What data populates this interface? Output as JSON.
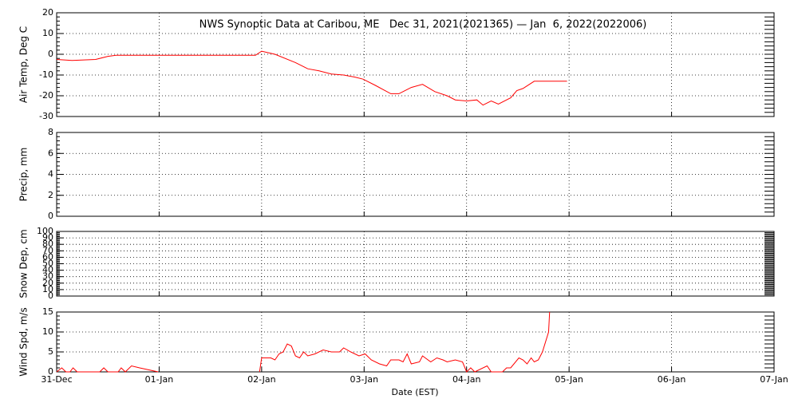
{
  "chart_data": [
    {
      "type": "line",
      "title": "NWS Synoptic Data at Caribou, ME   Dec 31, 2021(2021365) — Jan  6, 2022(2022006)",
      "ylabel": "Air Temp, Deg C",
      "xlim": [
        0,
        7
      ],
      "ylim": [
        -30,
        20
      ],
      "yticks": [
        -30,
        -20,
        -10,
        0,
        10,
        20
      ],
      "grid": true,
      "series": [
        {
          "color": "#ff0000",
          "x": [
            0,
            0.15,
            0.38,
            0.5,
            0.58,
            1.94,
            2.0,
            2.13,
            2.33,
            2.45,
            2.56,
            2.68,
            2.8,
            2.91,
            2.99,
            3.11,
            3.26,
            3.34,
            3.46,
            3.57,
            3.69,
            3.81,
            3.89,
            4.0,
            4.1,
            4.16,
            4.24,
            4.31,
            4.43,
            4.49,
            4.55,
            4.66,
            4.98
          ],
          "values": [
            -2.5,
            -3,
            -2.5,
            -1,
            -0.5,
            -0.5,
            1.5,
            0,
            -4,
            -7,
            -8,
            -9.5,
            -10,
            -11,
            -12,
            -15,
            -19,
            -19,
            -16,
            -14.5,
            -18,
            -20,
            -22,
            -22.5,
            -22,
            -24.5,
            -22.5,
            -24,
            -21,
            -17.5,
            -16.5,
            -13,
            -13
          ]
        }
      ]
    },
    {
      "type": "line",
      "ylabel": "Precip, mm",
      "xlim": [
        0,
        7
      ],
      "ylim": [
        0,
        8
      ],
      "yticks": [
        0,
        2,
        4,
        6,
        8
      ],
      "grid": true
    },
    {
      "type": "line",
      "ylabel": "Snow Dep, cm",
      "xlim": [
        0,
        7
      ],
      "ylim": [
        0,
        100
      ],
      "yticks": [
        0,
        10,
        20,
        30,
        40,
        50,
        60,
        70,
        80,
        90,
        100
      ],
      "grid": true
    },
    {
      "type": "line",
      "ylabel": "Wind Spd, m/s",
      "xlabel": "Date (EST)",
      "xlim": [
        0,
        7
      ],
      "ylim": [
        0,
        15
      ],
      "yticks": [
        0,
        5,
        10,
        15
      ],
      "grid": true,
      "xticks": [
        {
          "value": 0,
          "label": "31-Dec"
        },
        {
          "value": 1,
          "label": "01-Jan"
        },
        {
          "value": 2,
          "label": "02-Jan"
        },
        {
          "value": 3,
          "label": "03-Jan"
        },
        {
          "value": 4,
          "label": "04-Jan"
        },
        {
          "value": 5,
          "label": "05-Jan"
        },
        {
          "value": 6,
          "label": "06-Jan"
        },
        {
          "value": 7,
          "label": "07-Jan"
        }
      ],
      "series": [
        {
          "color": "#ff0000",
          "x": [
            0,
            0.05,
            0.09,
            0.13,
            0.16,
            0.2,
            0.42,
            0.46,
            0.5,
            0.6,
            0.63,
            0.67,
            0.73,
            0.81,
            0.99,
            1.5,
            1.98,
            2.0,
            2.09,
            2.13,
            2.17,
            2.21,
            2.25,
            2.29,
            2.33,
            2.37,
            2.41,
            2.45,
            2.52,
            2.6,
            2.68,
            2.76,
            2.8,
            2.87,
            2.95,
            3.01,
            3.07,
            3.15,
            3.22,
            3.26,
            3.34,
            3.38,
            3.42,
            3.46,
            3.54,
            3.57,
            3.65,
            3.71,
            3.77,
            3.81,
            3.89,
            3.96,
            4.0,
            4.04,
            4.08,
            4.2,
            4.24,
            4.35,
            4.39,
            4.43,
            4.51,
            4.55,
            4.59,
            4.63,
            4.66,
            4.7,
            4.74,
            4.8,
            4.81
          ],
          "values": [
            0,
            1,
            0,
            0,
            1,
            0,
            0,
            1,
            0,
            0,
            1,
            0,
            1.5,
            1,
            0,
            null,
            0,
            3.5,
            3.5,
            3,
            4.5,
            5,
            7,
            6.5,
            4,
            3.5,
            5,
            4,
            4.5,
            5.5,
            5,
            5,
            6,
            5,
            4,
            4.5,
            3,
            2,
            1.5,
            3,
            3,
            2.5,
            4.5,
            2,
            2.5,
            4,
            2.5,
            3.5,
            3,
            2.5,
            3,
            2.5,
            0,
            1,
            0,
            1.5,
            0,
            0,
            1,
            1,
            3.5,
            3,
            2,
            3.5,
            2.5,
            3,
            5,
            10,
            15
          ]
        }
      ]
    }
  ]
}
